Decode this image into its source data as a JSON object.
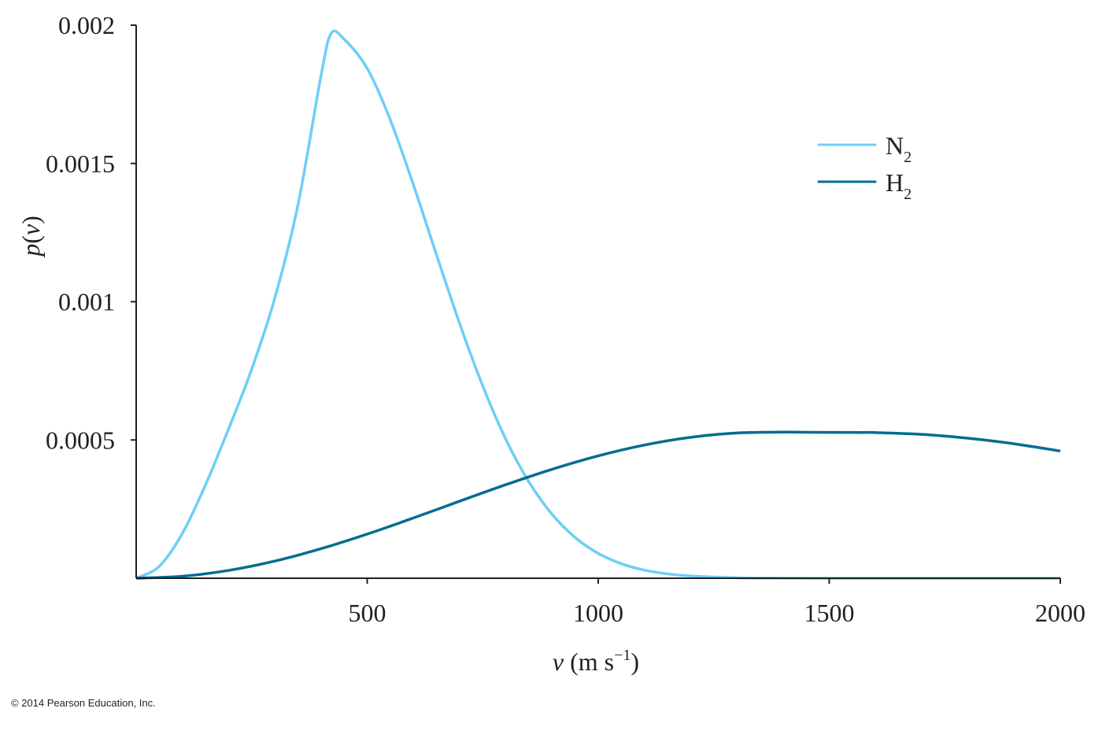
{
  "chart_data": {
    "type": "line",
    "xlabel": {
      "var": "v",
      "unit": " (m s",
      "exp": "−1",
      "close": ")"
    },
    "ylabel": {
      "var": "p",
      "open": "(",
      "arg": "v",
      "close": ")"
    },
    "xlim": [
      0,
      2000
    ],
    "ylim": [
      0,
      0.002
    ],
    "x_ticks": [
      {
        "value": 500,
        "label": "500"
      },
      {
        "value": 1000,
        "label": "1000"
      },
      {
        "value": 1500,
        "label": "1500"
      },
      {
        "value": 2000,
        "label": "2000"
      }
    ],
    "y_ticks": [
      {
        "value": 0.0005,
        "label": "0.0005"
      },
      {
        "value": 0.001,
        "label": "0.001"
      },
      {
        "value": 0.0015,
        "label": "0.0015"
      },
      {
        "value": 0.002,
        "label": "0.002"
      }
    ],
    "grid": false,
    "legend_position": "top-right",
    "series": [
      {
        "name": "N2",
        "label_base": "N",
        "label_sub": "2",
        "color": "#6dcff6",
        "x": [
          0,
          50,
          100,
          150,
          200,
          250,
          300,
          350,
          400,
          422,
          450,
          500,
          550,
          600,
          650,
          700,
          750,
          800,
          850,
          900,
          950,
          1000,
          1050,
          1100,
          1150,
          1200,
          1300,
          1400,
          1500,
          1600,
          1800,
          2000
        ],
        "y": [
          0,
          4.31e-05,
          0.0001623,
          0.0003372,
          0.0005401,
          0.0007557,
          0.0010131,
          0.0013489,
          0.0018166,
          0.00197,
          0.0019496,
          0.0018438,
          0.0016576,
          0.0014228,
          0.0011696,
          0.0009215,
          0.0006955,
          0.0005026,
          0.0003483,
          0.0002314,
          0.0001472,
          8.98e-05,
          5.24e-05,
          2.93e-05,
          1.57e-05,
          8.1e-06,
          1.9e-06,
          4e-07,
          1e-07,
          0,
          0,
          0
        ]
      },
      {
        "name": "H2",
        "label_base": "H",
        "label_sub": "2",
        "color": "#006d8f",
        "x": [
          0,
          100,
          200,
          300,
          400,
          500,
          600,
          700,
          800,
          900,
          1000,
          1100,
          1200,
          1300,
          1400,
          1500,
          1578,
          1600,
          1700,
          1800,
          1900,
          2000
        ],
        "y": [
          0,
          7.2e-06,
          2.83e-05,
          6.21e-05,
          0.0001067,
          0.0001596,
          0.0002179,
          0.0002786,
          0.0003383,
          0.0003939,
          0.0004425,
          0.0004817,
          0.0005096,
          0.0005253,
          0.0005283,
          0.0005274,
          0.000527,
          0.0005268,
          0.0005204,
          0.0005063,
          0.0004862,
          0.00046
        ]
      }
    ]
  },
  "copyright": "© 2014 Pearson Education, Inc."
}
